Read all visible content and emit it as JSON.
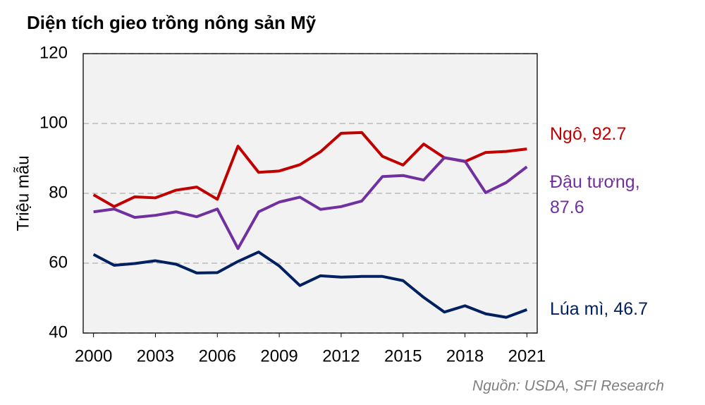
{
  "chart_data": {
    "type": "line",
    "title": "Diện tích gieo trồng nông sản Mỹ",
    "y_label": "Triệu mẫu",
    "source": "Nguồn: USDA, SFI Research",
    "x": [
      2000,
      2001,
      2002,
      2003,
      2004,
      2005,
      2006,
      2007,
      2008,
      2009,
      2010,
      2011,
      2012,
      2013,
      2014,
      2015,
      2016,
      2017,
      2018,
      2019,
      2020,
      2021
    ],
    "xlim": [
      1999.5,
      2021.5
    ],
    "xticks": [
      2000,
      2003,
      2006,
      2009,
      2012,
      2015,
      2018,
      2021
    ],
    "ylim": [
      40,
      120
    ],
    "yticks": [
      40,
      60,
      80,
      100,
      120
    ],
    "grid": true,
    "series": [
      {
        "name": "Ngô, 92.7",
        "color": "#c00000",
        "values": [
          79.6,
          76.2,
          79,
          78.7,
          80.9,
          81.8,
          78.3,
          93.5,
          86,
          86.4,
          88.2,
          91.9,
          97.2,
          97.4,
          90.6,
          88.1,
          94.1,
          90.2,
          89.1,
          91.7,
          92,
          92.7
        ]
      },
      {
        "name": "Đậu tương, 87.6",
        "color": "#7030a0",
        "values": [
          74.7,
          75.5,
          73.1,
          73.7,
          74.7,
          73.3,
          75.5,
          64.2,
          74.7,
          77.5,
          78.9,
          75.4,
          76.2,
          77.8,
          84.8,
          85.1,
          83.8,
          90.2,
          89.2,
          80.2,
          83.1,
          87.6
        ]
      },
      {
        "name": "Lúa mì, 46.7",
        "color": "#002060",
        "values": [
          62.5,
          59.4,
          59.9,
          60.7,
          59.7,
          57.2,
          57.3,
          60.5,
          63.2,
          59.2,
          53.6,
          56.4,
          56,
          56.2,
          56.2,
          55,
          50.2,
          46,
          47.8,
          45.5,
          44.5,
          46.7
        ]
      }
    ]
  }
}
